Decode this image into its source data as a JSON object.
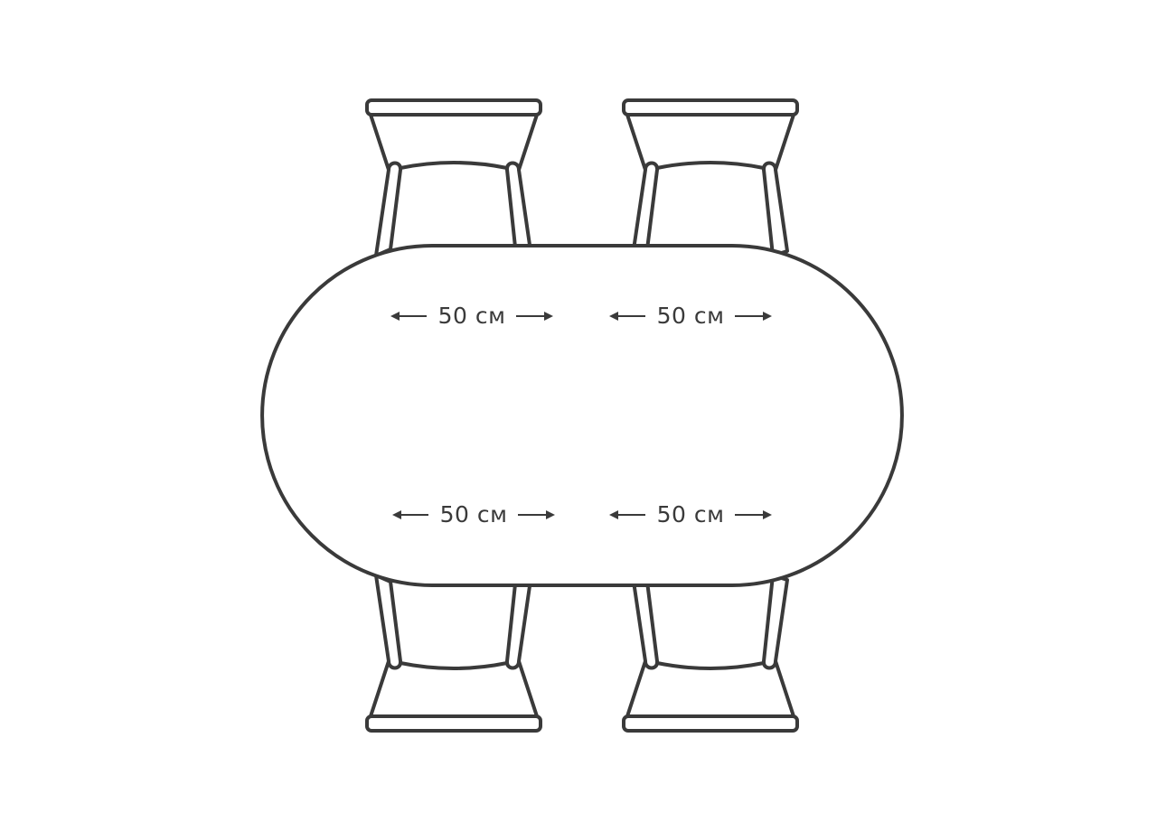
{
  "diagram": {
    "table_shape": "oval",
    "colors": {
      "stroke": "#3a3a3a",
      "background": "#ffffff"
    },
    "dimensions": [
      {
        "label": "50 см"
      },
      {
        "label": "50 см"
      },
      {
        "label": "50 см"
      },
      {
        "label": "50 см"
      }
    ]
  }
}
